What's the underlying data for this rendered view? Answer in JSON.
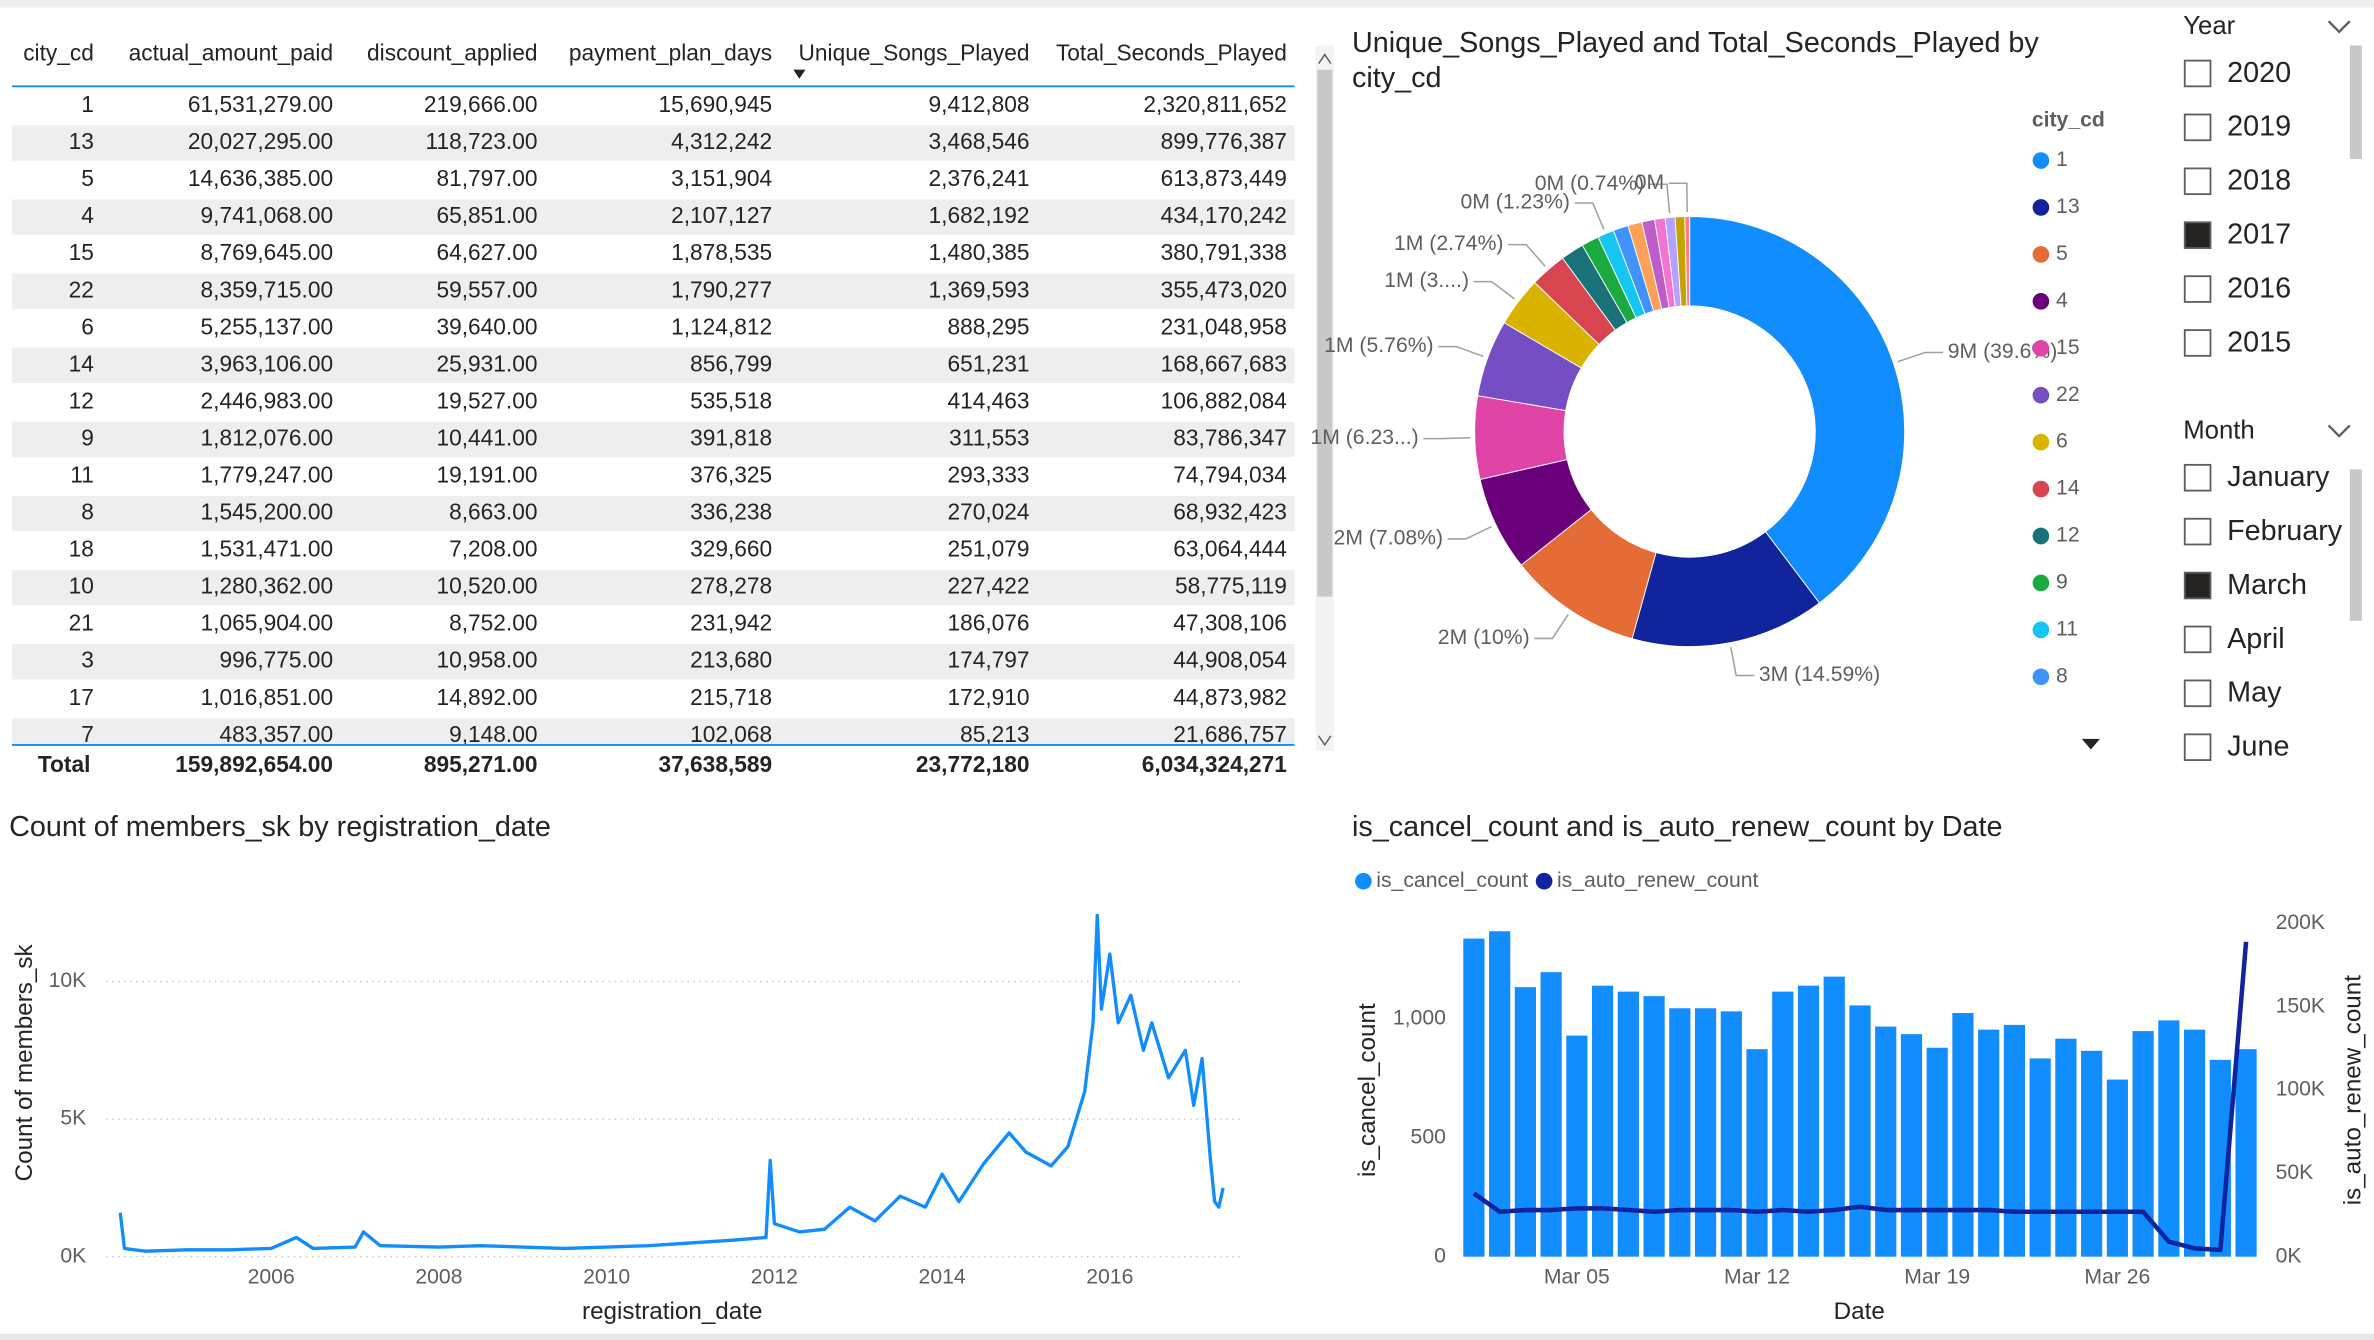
{
  "table": {
    "columns": [
      "city_cd",
      "actual_amount_paid",
      "discount_applied",
      "payment_plan_days",
      "Unique_Songs_Played",
      "Total_Seconds_Played"
    ],
    "rows": [
      [
        "1",
        "61,531,279.00",
        "219,666.00",
        "15,690,945",
        "9,412,808",
        "2,320,811,652"
      ],
      [
        "13",
        "20,027,295.00",
        "118,723.00",
        "4,312,242",
        "3,468,546",
        "899,776,387"
      ],
      [
        "5",
        "14,636,385.00",
        "81,797.00",
        "3,151,904",
        "2,376,241",
        "613,873,449"
      ],
      [
        "4",
        "9,741,068.00",
        "65,851.00",
        "2,107,127",
        "1,682,192",
        "434,170,242"
      ],
      [
        "15",
        "8,769,645.00",
        "64,627.00",
        "1,878,535",
        "1,480,385",
        "380,791,338"
      ],
      [
        "22",
        "8,359,715.00",
        "59,557.00",
        "1,790,277",
        "1,369,593",
        "355,473,020"
      ],
      [
        "6",
        "5,255,137.00",
        "39,640.00",
        "1,124,812",
        "888,295",
        "231,048,958"
      ],
      [
        "14",
        "3,963,106.00",
        "25,931.00",
        "856,799",
        "651,231",
        "168,667,683"
      ],
      [
        "12",
        "2,446,983.00",
        "19,527.00",
        "535,518",
        "414,463",
        "106,882,084"
      ],
      [
        "9",
        "1,812,076.00",
        "10,441.00",
        "391,818",
        "311,553",
        "83,786,347"
      ],
      [
        "11",
        "1,779,247.00",
        "19,191.00",
        "376,325",
        "293,333",
        "74,794,034"
      ],
      [
        "8",
        "1,545,200.00",
        "8,663.00",
        "336,238",
        "270,024",
        "68,932,423"
      ],
      [
        "18",
        "1,531,471.00",
        "7,208.00",
        "329,660",
        "251,079",
        "63,064,444"
      ],
      [
        "10",
        "1,280,362.00",
        "10,520.00",
        "278,278",
        "227,422",
        "58,775,119"
      ],
      [
        "21",
        "1,065,904.00",
        "8,752.00",
        "231,942",
        "186,076",
        "47,308,106"
      ],
      [
        "3",
        "996,775.00",
        "10,958.00",
        "213,680",
        "174,797",
        "44,908,054"
      ],
      [
        "17",
        "1,016,851.00",
        "14,892.00",
        "215,718",
        "172,910",
        "44,873,982"
      ],
      [
        "7",
        "483,357.00",
        "9,148.00",
        "102,068",
        "85,213",
        "21,686,757"
      ]
    ],
    "total": [
      "Total",
      "159,892,654.00",
      "895,271.00",
      "37,638,589",
      "23,772,180",
      "6,034,324,271"
    ]
  },
  "chart_data": [
    {
      "type": "donut",
      "title": "Unique_Songs_Played and Total_Seconds_Played by city_cd",
      "legend_title": "city_cd",
      "categories": [
        "1",
        "13",
        "5",
        "4",
        "15",
        "22",
        "6",
        "14",
        "12",
        "9",
        "11",
        "8",
        "18",
        "10",
        "21",
        "3",
        "17",
        "7"
      ],
      "values": [
        9412808,
        3468546,
        2376241,
        1682192,
        1480385,
        1369593,
        888295,
        651231,
        414463,
        311553,
        293333,
        270024,
        251079,
        227422,
        186076,
        174797,
        172910,
        85213
      ],
      "value_labels": [
        "9M (39.6%)",
        "3M (14.59%)",
        "2M (10%)",
        "2M (7.08%)",
        "1M (6.23...)",
        "1M (5.76%)",
        "1M (3....)",
        "1M (2.74%)",
        null,
        null,
        "0M (1.23%)",
        null,
        null,
        null,
        null,
        "0M (0.74%)",
        null,
        "0M"
      ],
      "colors": [
        "#118DFF",
        "#12239E",
        "#E66C37",
        "#6B007B",
        "#E044A7",
        "#744EC2",
        "#D9B300",
        "#D64550",
        "#197278",
        "#1AAB40",
        "#15C6F4",
        "#4092FF",
        "#FFA058",
        "#BE5DC9",
        "#F472D0",
        "#B5A1FF",
        "#C4A200",
        "#FF8080"
      ]
    },
    {
      "type": "line",
      "title": "Count of members_sk by registration_date",
      "xlabel": "registration_date",
      "ylabel": "Count of members_sk",
      "color": "#118DFF",
      "grid": true,
      "x": [
        2004.2,
        2004.25,
        2004.5,
        2005,
        2005.5,
        2006,
        2006.3,
        2006.5,
        2007,
        2007.1,
        2007.3,
        2008,
        2008.5,
        2009,
        2009.5,
        2010,
        2010.5,
        2011,
        2011.5,
        2011.9,
        2011.95,
        2012,
        2012.3,
        2012.6,
        2012.9,
        2013.2,
        2013.5,
        2013.8,
        2014,
        2014.2,
        2014.5,
        2014.8,
        2015,
        2015.3,
        2015.5,
        2015.7,
        2015.8,
        2015.85,
        2015.9,
        2016,
        2016.1,
        2016.25,
        2016.4,
        2016.5,
        2016.7,
        2016.9,
        2017,
        2017.1,
        2017.2,
        2017.25,
        2017.3,
        2017.35
      ],
      "values": [
        1600,
        300,
        200,
        250,
        250,
        300,
        700,
        300,
        350,
        900,
        400,
        350,
        400,
        350,
        300,
        350,
        400,
        500,
        600,
        700,
        3500,
        1200,
        900,
        1000,
        1800,
        1300,
        2200,
        1800,
        3000,
        2000,
        3400,
        4500,
        3800,
        3300,
        4000,
        6000,
        8500,
        12400,
        9000,
        11000,
        8500,
        9500,
        7500,
        8500,
        6500,
        7500,
        5500,
        7200,
        3500,
        2000,
        1800,
        2500
      ],
      "xlim": [
        2004.03,
        2017.57
      ],
      "xticks": [
        2006,
        2008,
        2010,
        2012,
        2014,
        2016
      ],
      "ylim": [
        0,
        12600
      ],
      "yticks": [
        {
          "value": 0,
          "label": "0K"
        },
        {
          "value": 5000,
          "label": "5K"
        },
        {
          "value": 10000,
          "label": "10K"
        }
      ]
    },
    {
      "type": "bar_line",
      "title": "is_cancel_count and is_auto_renew_count by Date",
      "xlabel": "Date",
      "ylabel": "is_cancel_count",
      "y2label": "is_auto_renew_count",
      "categories": [
        null,
        null,
        null,
        null,
        "Mar 05",
        null,
        null,
        null,
        null,
        null,
        null,
        "Mar 12",
        null,
        null,
        null,
        null,
        null,
        null,
        "Mar 19",
        null,
        null,
        null,
        null,
        null,
        null,
        "Mar 26",
        null,
        null,
        null,
        null,
        null
      ],
      "series": [
        {
          "name": "is_cancel_count",
          "type": "bar",
          "color": "#118DFF",
          "values": [
            1338,
            1369,
            1134,
            1197,
            930,
            1140,
            1115,
            1096,
            1045,
            1045,
            1032,
            873,
            1115,
            1140,
            1178,
            1057,
            968,
            936,
            879,
            1025,
            955,
            975,
            834,
            917,
            866,
            745,
            949,
            994,
            955,
            828,
            873
          ]
        },
        {
          "name": "is_auto_renew_count",
          "type": "line",
          "axis": "y2",
          "color": "#12239E",
          "values": [
            38000,
            27000,
            28000,
            28000,
            29000,
            29000,
            28000,
            27000,
            28000,
            28000,
            28000,
            27000,
            28000,
            27000,
            28000,
            30000,
            28000,
            28000,
            28000,
            28000,
            28000,
            27000,
            27000,
            27000,
            27000,
            27000,
            27000,
            9000,
            5000,
            4000,
            189000
          ]
        }
      ],
      "ylim": [
        0,
        1433
      ],
      "yticks": [
        0,
        500,
        {
          "value": 1000,
          "label": "1,000"
        }
      ],
      "y2lim": [
        0,
        204500
      ],
      "y2ticks": [
        {
          "value": 0,
          "label": "0K"
        },
        {
          "value": 50000,
          "label": "50K"
        },
        {
          "value": 100000,
          "label": "100K"
        },
        {
          "value": 150000,
          "label": "150K"
        },
        {
          "value": 200000,
          "label": "200K"
        }
      ]
    }
  ],
  "slicers": [
    {
      "title": "Year",
      "items": [
        {
          "label": "2020",
          "selected": false
        },
        {
          "label": "2019",
          "selected": false
        },
        {
          "label": "2018",
          "selected": false
        },
        {
          "label": "2017",
          "selected": true
        },
        {
          "label": "2016",
          "selected": false
        },
        {
          "label": "2015",
          "selected": false
        }
      ]
    },
    {
      "title": "Month",
      "items": [
        {
          "label": "January",
          "selected": false
        },
        {
          "label": "February",
          "selected": false
        },
        {
          "label": "March",
          "selected": true
        },
        {
          "label": "April",
          "selected": false
        },
        {
          "label": "May",
          "selected": false
        },
        {
          "label": "June",
          "selected": false
        }
      ]
    }
  ]
}
